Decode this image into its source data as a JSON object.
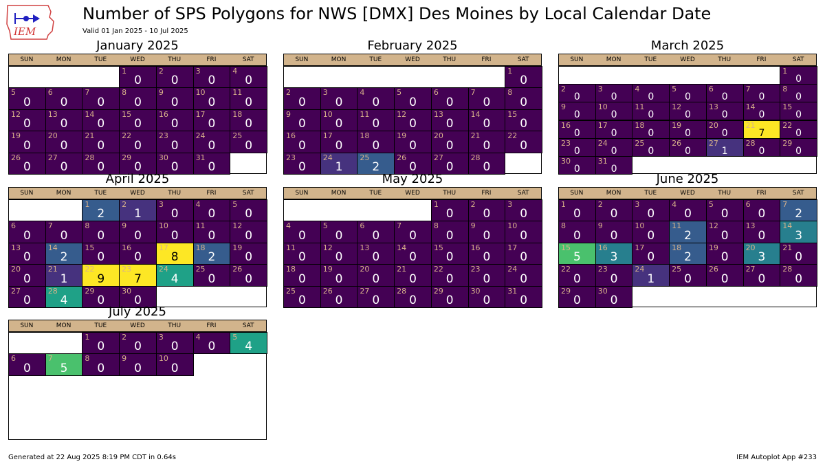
{
  "title": "Number of SPS Polygons for NWS [DMX] Des Moines by Local Calendar Date",
  "subtitle": "Valid 01 Jan 2025 - 10 Jul 2025",
  "logo_text": "IEM",
  "footer_left": "Generated at 22 Aug 2025 8:19 PM CDT in 0.64s",
  "footer_right": "IEM Autoplot App #233",
  "weekdays": [
    "SUN",
    "MON",
    "TUE",
    "WED",
    "THU",
    "FRI",
    "SAT"
  ],
  "colors": {
    "header": "#d2b48c",
    "daynum": "#d8b28a",
    "v0": "#440154",
    "v1": "#46327e",
    "v2": "#365c8d",
    "v3": "#277f8e",
    "v4": "#1fa187",
    "v5": "#4ac16d",
    "v7": "#fde725",
    "v8": "#fde725",
    "v9": "#fde725"
  },
  "chart_data": {
    "type": "heatmap",
    "title": "Number of SPS Polygons for NWS [DMX] Des Moines by Local Calendar Date",
    "months": [
      {
        "label": "January 2025",
        "start_weekday": 3,
        "days": 31,
        "values": [
          0,
          0,
          0,
          0,
          0,
          0,
          0,
          0,
          0,
          0,
          0,
          0,
          0,
          0,
          0,
          0,
          0,
          0,
          0,
          0,
          0,
          0,
          0,
          0,
          0,
          0,
          0,
          0,
          0,
          0,
          0
        ]
      },
      {
        "label": "February 2025",
        "start_weekday": 6,
        "days": 28,
        "values": [
          0,
          0,
          0,
          0,
          0,
          0,
          0,
          0,
          0,
          0,
          0,
          0,
          0,
          0,
          0,
          0,
          0,
          0,
          0,
          0,
          0,
          0,
          0,
          1,
          2,
          0,
          0,
          0
        ]
      },
      {
        "label": "March 2025",
        "start_weekday": 6,
        "days": 31,
        "values": [
          0,
          0,
          0,
          0,
          0,
          0,
          0,
          0,
          0,
          0,
          0,
          0,
          0,
          0,
          0,
          0,
          0,
          0,
          0,
          0,
          7,
          0,
          0,
          0,
          0,
          0,
          1,
          0,
          0,
          0,
          0
        ]
      },
      {
        "label": "April 2025",
        "start_weekday": 2,
        "days": 30,
        "values": [
          2,
          1,
          0,
          0,
          0,
          0,
          0,
          0,
          0,
          0,
          0,
          0,
          0,
          2,
          0,
          0,
          8,
          2,
          0,
          0,
          1,
          9,
          7,
          4,
          0,
          0,
          0,
          4,
          0,
          0
        ]
      },
      {
        "label": "May 2025",
        "start_weekday": 4,
        "days": 31,
        "values": [
          0,
          0,
          0,
          0,
          0,
          0,
          0,
          0,
          0,
          0,
          0,
          0,
          0,
          0,
          0,
          0,
          0,
          0,
          0,
          0,
          0,
          0,
          0,
          0,
          0,
          0,
          0,
          0,
          0,
          0,
          0
        ]
      },
      {
        "label": "June 2025",
        "start_weekday": 0,
        "days": 30,
        "values": [
          0,
          0,
          0,
          0,
          0,
          0,
          2,
          0,
          0,
          0,
          2,
          0,
          0,
          3,
          5,
          3,
          0,
          2,
          0,
          3,
          0,
          0,
          0,
          1,
          0,
          0,
          0,
          0,
          0,
          0
        ]
      },
      {
        "label": "July 2025",
        "start_weekday": 2,
        "days": 10,
        "values": [
          0,
          0,
          0,
          0,
          4,
          0,
          5,
          0,
          0,
          0
        ]
      }
    ]
  }
}
